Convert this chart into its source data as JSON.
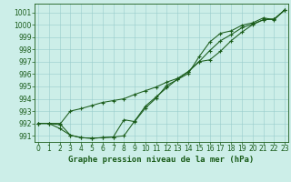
{
  "title": "Graphe pression niveau de la mer (hPa)",
  "background_color": "#cceee8",
  "grid_color": "#99cccc",
  "line_color": "#1a5c1a",
  "xlim": [
    -0.3,
    23.3
  ],
  "ylim": [
    990.5,
    1001.7
  ],
  "xticks": [
    0,
    1,
    2,
    3,
    4,
    5,
    6,
    7,
    8,
    9,
    10,
    11,
    12,
    13,
    14,
    15,
    16,
    17,
    18,
    19,
    20,
    21,
    22,
    23
  ],
  "yticks": [
    991,
    992,
    993,
    994,
    995,
    996,
    997,
    998,
    999,
    1000,
    1001
  ],
  "line1": [
    992.0,
    992.0,
    992.0,
    991.05,
    990.85,
    990.8,
    990.85,
    990.9,
    991.0,
    992.2,
    993.4,
    994.15,
    994.9,
    995.6,
    996.2,
    997.0,
    997.15,
    997.85,
    998.7,
    999.4,
    1000.0,
    1000.4,
    1000.45,
    1001.2
  ],
  "line2": [
    992.0,
    992.0,
    991.9,
    993.0,
    993.2,
    993.45,
    993.7,
    993.85,
    994.0,
    994.35,
    994.65,
    994.95,
    995.35,
    995.65,
    996.2,
    997.0,
    997.9,
    998.7,
    999.2,
    999.75,
    1000.05,
    1000.4,
    1000.45,
    1001.2
  ],
  "line3": [
    992.0,
    992.0,
    991.6,
    991.05,
    990.85,
    990.8,
    990.85,
    990.9,
    992.3,
    992.15,
    993.25,
    994.05,
    995.1,
    995.55,
    996.05,
    997.4,
    998.6,
    999.3,
    999.5,
    999.95,
    1000.15,
    1000.55,
    1000.4,
    1001.2
  ],
  "xtick_fontsize": 5.5,
  "ytick_fontsize": 5.5,
  "title_fontsize": 6.5,
  "lw": 0.75
}
